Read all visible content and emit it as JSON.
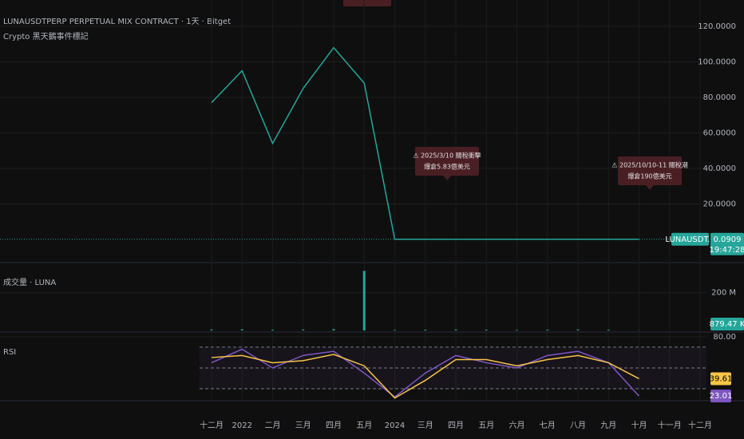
{
  "chart_data": [
    {
      "type": "line",
      "title": "LUNAUSDTPERP PERPETUAL MIX CONTRACT · 1天 · Bitget",
      "subtitle": "Crypto 黑天鵝事件標記",
      "categories": [
        "十二月",
        "2022",
        "二月",
        "三月",
        "四月",
        "五月",
        "2024",
        "三月",
        "四月",
        "五月",
        "六月",
        "七月",
        "八月",
        "九月",
        "十月",
        "十一月",
        "十二月"
      ],
      "series": [
        {
          "name": "LUNAUSDT.P",
          "color": "#26a69a",
          "values": [
            77,
            95,
            54,
            85,
            108,
            88,
            0.1,
            0.1,
            0.1,
            0.1,
            0.1,
            0.1,
            0.1,
            0.1,
            0.0909,
            null,
            null
          ]
        }
      ],
      "last_value": {
        "value": 0.0909,
        "label": "0.0909"
      },
      "countdown": "19:47:28",
      "ylim": [
        -12.6,
        134.8
      ],
      "yticks": [
        {
          "value": 20,
          "label": "20.0000"
        },
        {
          "value": 40,
          "label": "40.0000"
        },
        {
          "value": 60,
          "label": "60.0000"
        },
        {
          "value": 80,
          "label": "80.0000"
        },
        {
          "value": 100,
          "label": "100.0000"
        },
        {
          "value": 120,
          "label": "120.0000"
        }
      ],
      "annotations": [
        [
          "⚠ 2025/3/10 關稅衝擊",
          "爆倉5.83億美元"
        ],
        [
          "⚠ 2025/10/10-11 關稅潮",
          "爆倉190億美元"
        ]
      ]
    },
    {
      "type": "bar",
      "title": "成交量 · LUNA",
      "series": [
        {
          "color": "#26a69a",
          "values": [
            5000000,
            6000000,
            4000000,
            5000000,
            7000000,
            315000000,
            3000000,
            4000000,
            5000000,
            4000000,
            3000000,
            4000000,
            5000000,
            4000000,
            879470,
            null,
            null
          ]
        }
      ],
      "last_value": {
        "value": 879470,
        "label": "879.47 K"
      },
      "ylim": [
        0,
        350000000
      ],
      "yticks": [
        {
          "value": 200000000,
          "label": "200 M"
        }
      ]
    },
    {
      "type": "line",
      "title": "RSI",
      "series": [
        {
          "name": "RSI",
          "color": "#7e57c2",
          "values": [
            55,
            68,
            50,
            62,
            66,
            45,
            22,
            45,
            62,
            55,
            50,
            62,
            66,
            55,
            23.01,
            null,
            null
          ]
        },
        {
          "color": "#f7c548",
          "values": [
            60,
            62,
            55,
            57,
            63,
            52,
            21,
            38,
            58,
            58,
            52,
            58,
            62,
            55,
            39.61,
            null,
            null
          ]
        }
      ],
      "bands": [
        70,
        50,
        30
      ],
      "ylim": [
        20,
        83
      ],
      "yticks": [
        {
          "value": 80,
          "label": "80.00"
        }
      ]
    }
  ]
}
